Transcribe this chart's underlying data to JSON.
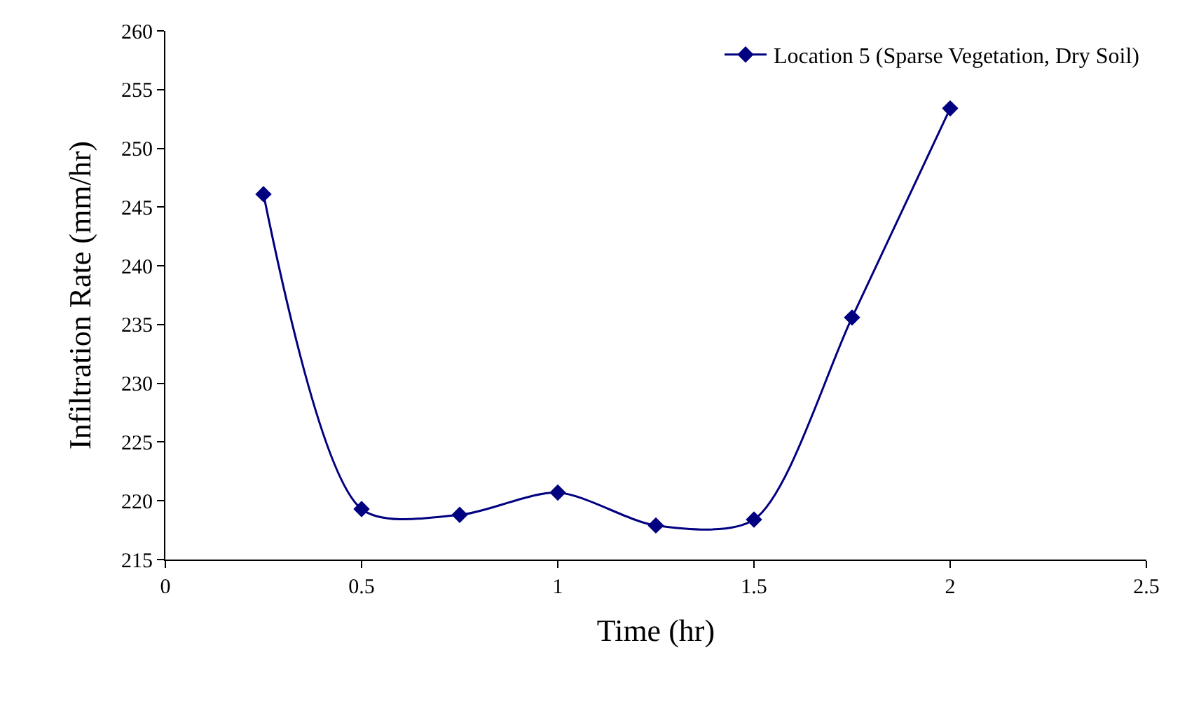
{
  "chart_data": {
    "type": "line",
    "xlabel": "Time (hr)",
    "ylabel": "Infiltration Rate (mm/hr)",
    "x": [
      0.25,
      0.5,
      0.75,
      1,
      1.25,
      1.5,
      1.75,
      2
    ],
    "series": [
      {
        "name": "Location 5 (Sparse Vegetation, Dry Soil)",
        "color": "#000080",
        "values": [
          246.1,
          219.3,
          218.8,
          220.7,
          217.9,
          218.4,
          235.6,
          253.4
        ]
      }
    ],
    "xlim": [
      0,
      2.5
    ],
    "xticks": [
      0,
      0.5,
      1,
      1.5,
      2,
      2.5
    ],
    "ylim": [
      215,
      260
    ],
    "yticks": [
      215,
      220,
      225,
      230,
      235,
      240,
      245,
      250,
      255,
      260
    ],
    "legend": "top right",
    "marker": "diamond",
    "line_style": "solid"
  }
}
